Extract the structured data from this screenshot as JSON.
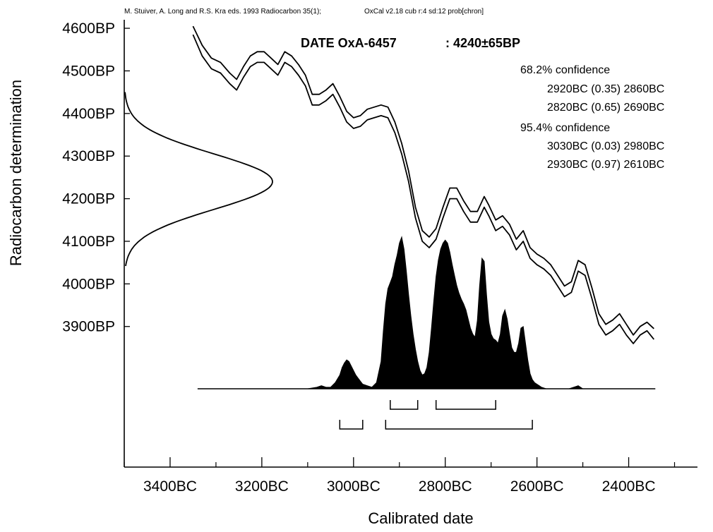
{
  "header": {
    "citation": "M. Stuiver, A. Long and R.S. Kra eds. 1993 Radiocarbon 35(1);",
    "software": "OxCal v2.18 cub r:4 sd:12 prob[chron]"
  },
  "date_label": {
    "name": "DATE OxA-6457",
    "value": ": 4240±65BP"
  },
  "confidence": {
    "level_68": {
      "title": "68.2% confidence",
      "ranges": [
        "2920BC (0.35) 2860BC",
        "2820BC (0.65) 2690BC"
      ]
    },
    "level_95": {
      "title": "95.4% confidence",
      "ranges": [
        "3030BC (0.03) 2980BC",
        "2930BC (0.97) 2610BC"
      ]
    }
  },
  "chart_data": {
    "type": "area",
    "xlabel": "Calibrated date",
    "ylabel": "Radiocarbon determination",
    "xlim": [
      3500,
      2250
    ],
    "ylim": [
      3570,
      4620
    ],
    "x_ticks": [
      3400,
      3200,
      3000,
      2800,
      2600,
      2400
    ],
    "x_tick_labels": [
      "3400BC",
      "3200BC",
      "3000BC",
      "2800BC",
      "2600BC",
      "2400BC"
    ],
    "y_ticks": [
      4600,
      4500,
      4400,
      4300,
      4200,
      4100,
      4000,
      3900
    ],
    "y_tick_labels": [
      "4600BP",
      "4500BP",
      "4400BP",
      "4300BP",
      "4200BP",
      "4100BP",
      "4000BP",
      "3900BP"
    ],
    "radiocarbon_date": {
      "mean_bp": 4240,
      "sigma_bp": 65
    },
    "calibration_curve": {
      "x": [
        3350,
        3330,
        3310,
        3290,
        3270,
        3255,
        3240,
        3225,
        3210,
        3195,
        3180,
        3165,
        3150,
        3135,
        3120,
        3105,
        3090,
        3075,
        3060,
        3045,
        3030,
        3015,
        3000,
        2985,
        2970,
        2955,
        2940,
        2925,
        2910,
        2895,
        2880,
        2865,
        2850,
        2835,
        2820,
        2805,
        2790,
        2775,
        2760,
        2745,
        2730,
        2715,
        2705,
        2690,
        2675,
        2660,
        2645,
        2630,
        2615,
        2600,
        2585,
        2570,
        2555,
        2540,
        2525,
        2510,
        2495,
        2480,
        2465,
        2450,
        2435,
        2420,
        2405,
        2390,
        2375,
        2360,
        2345
      ],
      "upper": [
        4605,
        4560,
        4530,
        4520,
        4495,
        4480,
        4510,
        4535,
        4545,
        4545,
        4530,
        4515,
        4545,
        4535,
        4515,
        4490,
        4445,
        4445,
        4455,
        4470,
        4440,
        4405,
        4390,
        4395,
        4410,
        4415,
        4420,
        4415,
        4380,
        4330,
        4265,
        4180,
        4125,
        4110,
        4130,
        4180,
        4225,
        4225,
        4195,
        4170,
        4170,
        4205,
        4185,
        4150,
        4160,
        4140,
        4105,
        4125,
        4085,
        4070,
        4060,
        4045,
        4020,
        3995,
        4005,
        4055,
        4045,
        3990,
        3930,
        3905,
        3915,
        3930,
        3905,
        3880,
        3900,
        3910,
        3895
      ],
      "lower": [
        4585,
        4535,
        4505,
        4495,
        4470,
        4455,
        4485,
        4510,
        4520,
        4520,
        4505,
        4490,
        4520,
        4510,
        4490,
        4465,
        4420,
        4420,
        4430,
        4445,
        4415,
        4380,
        4365,
        4370,
        4385,
        4390,
        4395,
        4390,
        4355,
        4305,
        4240,
        4155,
        4100,
        4085,
        4105,
        4155,
        4200,
        4200,
        4170,
        4145,
        4145,
        4180,
        4160,
        4125,
        4135,
        4115,
        4080,
        4100,
        4060,
        4045,
        4035,
        4020,
        3995,
        3970,
        3980,
        4030,
        4020,
        3965,
        3905,
        3880,
        3890,
        3905,
        3880,
        3860,
        3880,
        3890,
        3870
      ]
    },
    "probability_distribution": {
      "x": [
        3340,
        3300,
        3200,
        3100,
        3080,
        3070,
        3060,
        3050,
        3040,
        3030,
        3025,
        3020,
        3015,
        3010,
        3005,
        3000,
        2995,
        2990,
        2985,
        2980,
        2970,
        2960,
        2950,
        2940,
        2935,
        2930,
        2925,
        2920,
        2915,
        2910,
        2905,
        2900,
        2895,
        2890,
        2885,
        2880,
        2875,
        2870,
        2865,
        2860,
        2855,
        2850,
        2845,
        2840,
        2835,
        2830,
        2825,
        2820,
        2815,
        2810,
        2805,
        2800,
        2795,
        2790,
        2785,
        2780,
        2775,
        2770,
        2765,
        2760,
        2755,
        2750,
        2745,
        2740,
        2735,
        2730,
        2725,
        2720,
        2715,
        2710,
        2705,
        2700,
        2695,
        2690,
        2685,
        2680,
        2675,
        2670,
        2665,
        2660,
        2655,
        2650,
        2645,
        2640,
        2635,
        2630,
        2625,
        2620,
        2615,
        2610,
        2605,
        2600,
        2595,
        2590,
        2580,
        2570,
        2550,
        2530,
        2520,
        2510,
        2505,
        2500,
        2450,
        2400,
        2342
      ],
      "y": [
        0,
        0,
        0,
        0,
        0.01,
        0.02,
        0.01,
        0.01,
        0.04,
        0.09,
        0.14,
        0.17,
        0.19,
        0.18,
        0.15,
        0.12,
        0.09,
        0.07,
        0.05,
        0.03,
        0.02,
        0.01,
        0.04,
        0.18,
        0.38,
        0.56,
        0.66,
        0.7,
        0.74,
        0.82,
        0.88,
        0.96,
        1.0,
        0.92,
        0.78,
        0.62,
        0.48,
        0.36,
        0.26,
        0.18,
        0.12,
        0.09,
        0.1,
        0.14,
        0.24,
        0.4,
        0.58,
        0.74,
        0.85,
        0.92,
        0.96,
        0.98,
        0.96,
        0.9,
        0.82,
        0.75,
        0.68,
        0.63,
        0.59,
        0.56,
        0.52,
        0.46,
        0.4,
        0.36,
        0.34,
        0.45,
        0.68,
        0.86,
        0.84,
        0.62,
        0.44,
        0.36,
        0.33,
        0.32,
        0.3,
        0.36,
        0.48,
        0.52,
        0.46,
        0.36,
        0.27,
        0.24,
        0.24,
        0.3,
        0.4,
        0.41,
        0.3,
        0.19,
        0.1,
        0.06,
        0.04,
        0.03,
        0.02,
        0.01,
        0,
        0,
        0,
        0,
        0.01,
        0.02,
        0.01,
        0,
        0,
        0,
        0
      ]
    },
    "range_bars": [
      {
        "level": "68.2%",
        "ranges": [
          [
            2920,
            2860
          ],
          [
            2820,
            2690
          ]
        ]
      },
      {
        "level": "95.4%",
        "ranges": [
          [
            3030,
            2980
          ],
          [
            2930,
            2610
          ]
        ]
      }
    ]
  }
}
